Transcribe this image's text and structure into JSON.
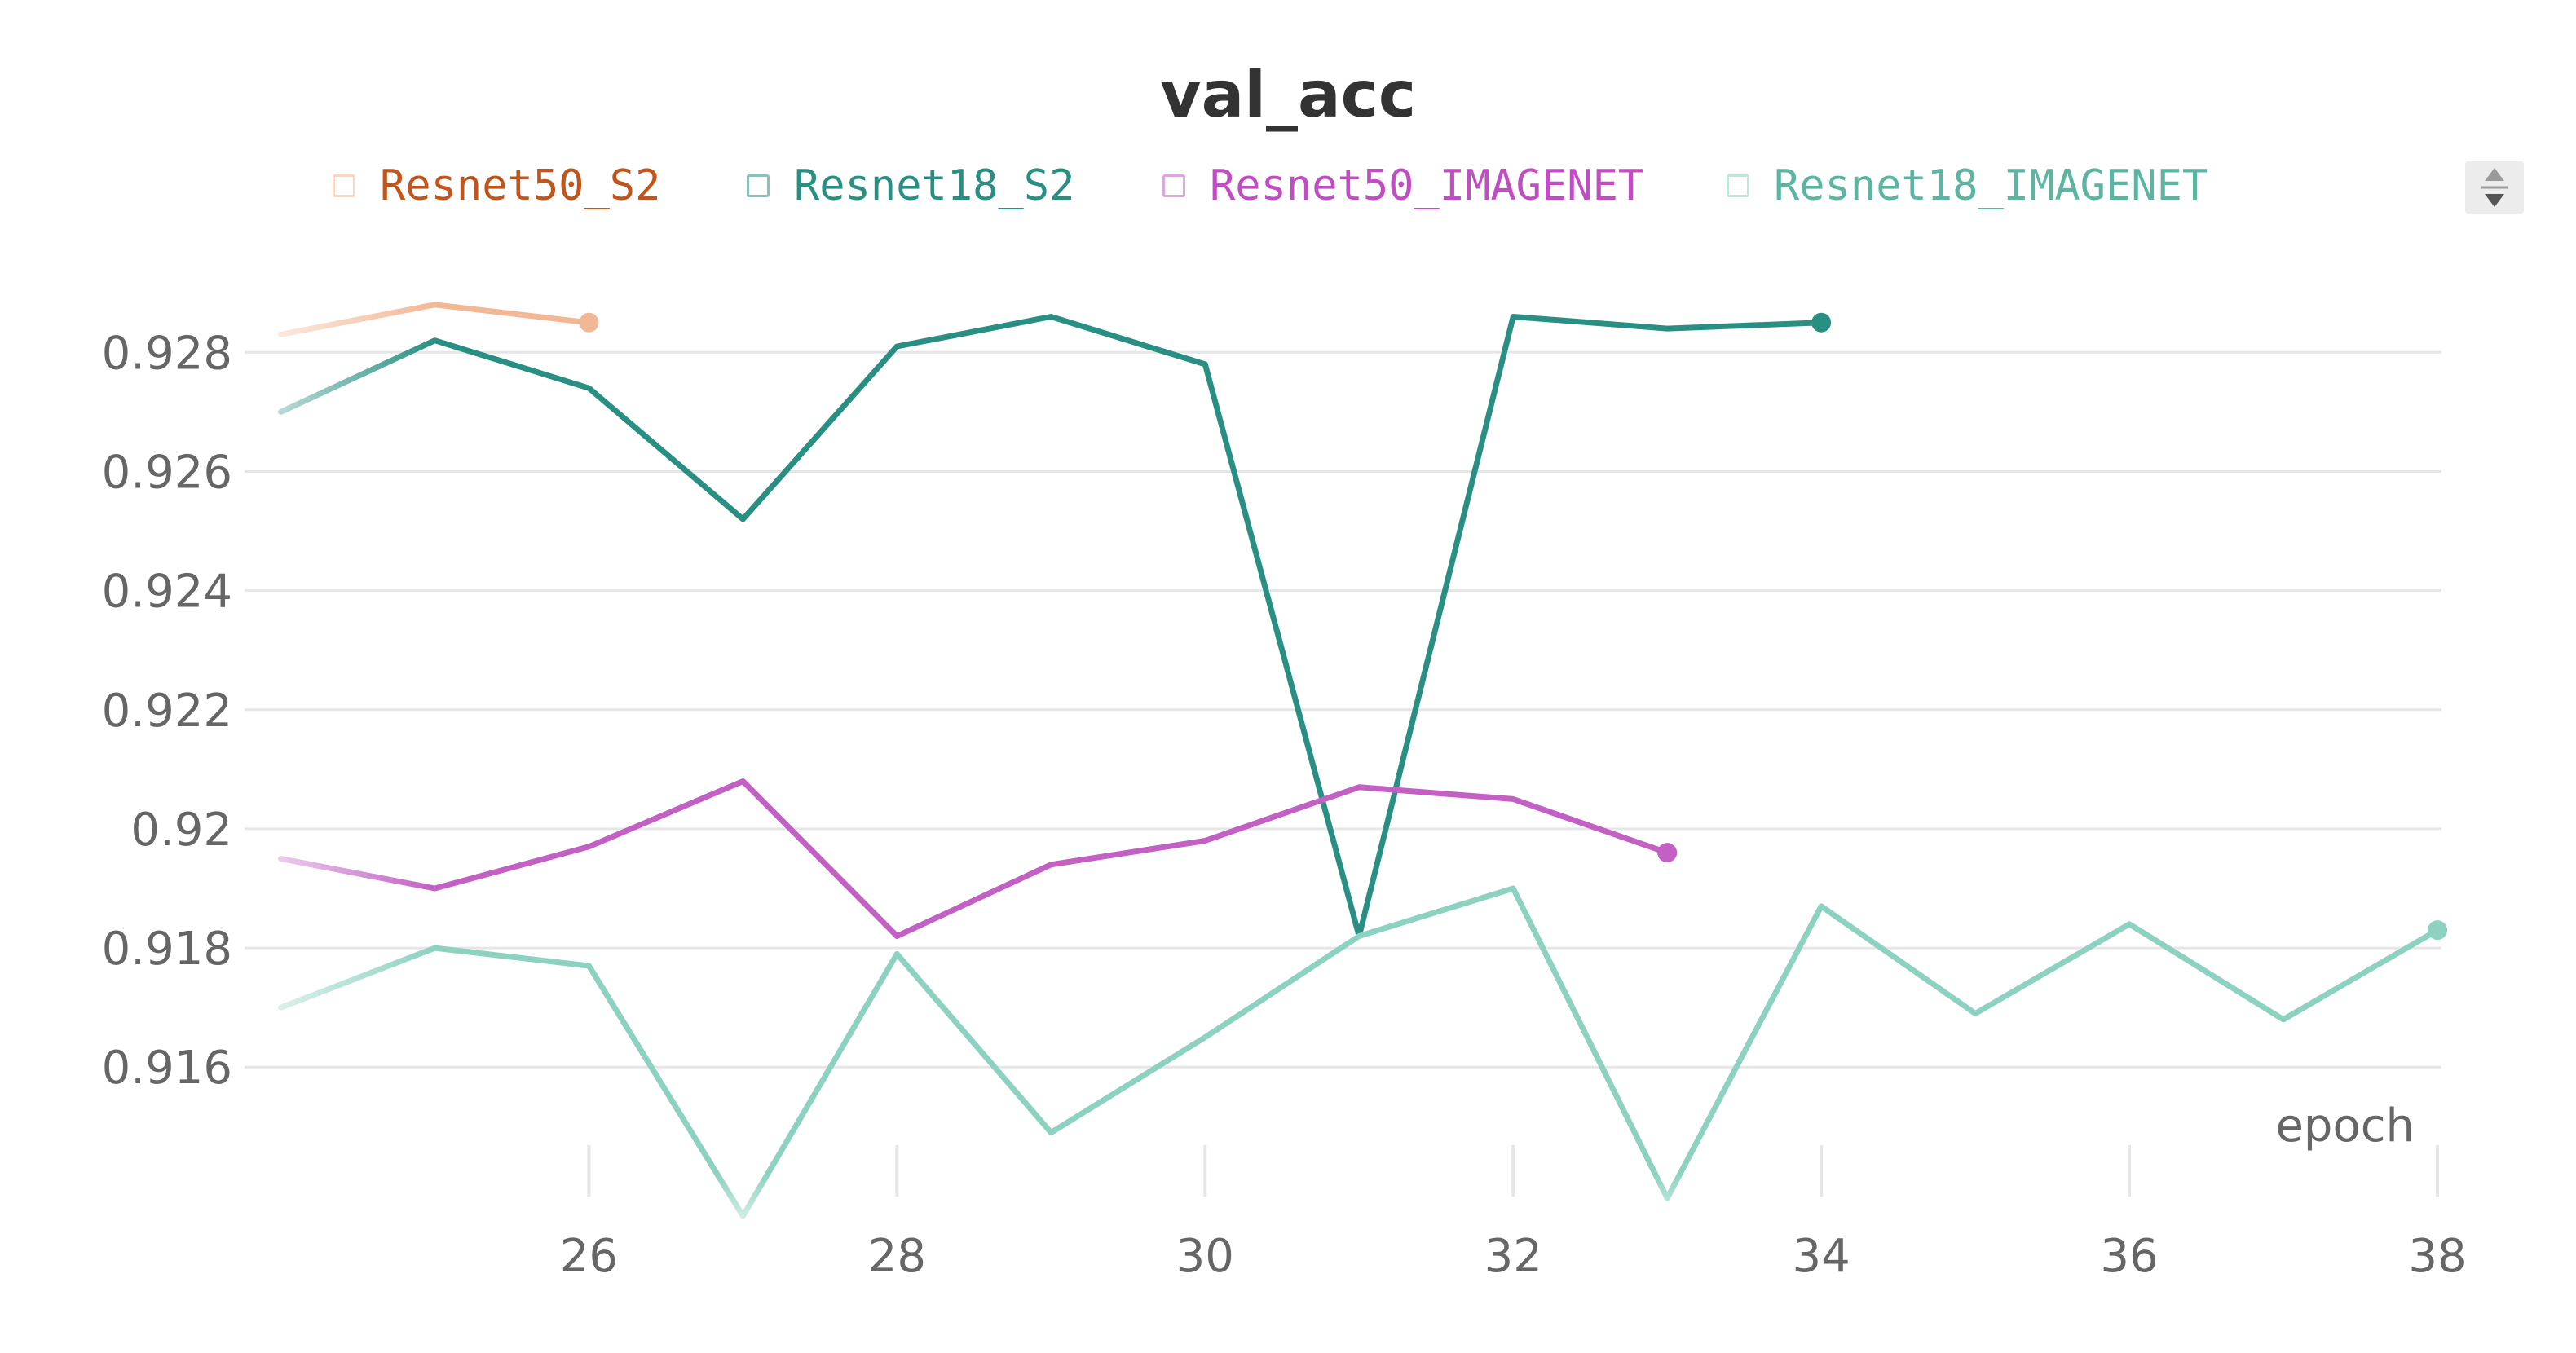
{
  "chart_data": {
    "type": "line",
    "title": "val_acc",
    "xlabel": "epoch",
    "ylabel": "",
    "xlim": [
      23.5,
      38
    ],
    "ylim": [
      0.9138,
      0.9294
    ],
    "x_ticks": [
      26,
      28,
      30,
      32,
      34,
      36,
      38
    ],
    "y_ticks": [
      0.916,
      0.918,
      0.92,
      0.922,
      0.924,
      0.926,
      0.928
    ],
    "y_tick_labels": [
      "0.916",
      "0.918",
      "0.92",
      "0.922",
      "0.924",
      "0.926",
      "0.928"
    ],
    "grid": true,
    "legend_position": "top",
    "series": [
      {
        "name": "Resnet50_S2",
        "color": "#f2b896",
        "label_color": "#c0561e",
        "x": [
          24,
          25,
          26
        ],
        "y": [
          0.9283,
          0.9288,
          0.9285
        ]
      },
      {
        "name": "Resnet18_S2",
        "color": "#2a8f83",
        "label_color": "#2a8f83",
        "x": [
          24,
          25,
          26,
          27,
          28,
          29,
          30,
          31,
          32,
          33,
          34
        ],
        "y": [
          0.927,
          0.9282,
          0.9274,
          0.9252,
          0.9281,
          0.9286,
          0.9278,
          0.9182,
          0.9286,
          0.9284,
          0.9285
        ]
      },
      {
        "name": "Resnet50_IMAGENET",
        "color": "#c260c4",
        "label_color": "#c04ec2",
        "x": [
          24,
          25,
          26,
          27,
          28,
          29,
          30,
          31,
          32,
          33
        ],
        "y": [
          0.9195,
          0.919,
          0.9197,
          0.9208,
          0.9182,
          0.9194,
          0.9198,
          0.9207,
          0.9205,
          0.9196
        ]
      },
      {
        "name": "Resnet18_IMAGENET",
        "color": "#8dd1c0",
        "label_color": "#5bb5a1",
        "x": [
          24,
          25,
          26,
          27,
          28,
          29,
          30,
          31,
          32,
          33,
          34,
          35,
          36,
          37,
          38
        ],
        "y": [
          0.917,
          0.918,
          0.9177,
          0.9135,
          0.9179,
          0.9149,
          0.9165,
          0.9182,
          0.919,
          0.9138,
          0.9187,
          0.9169,
          0.9184,
          0.9168,
          0.9183
        ]
      }
    ]
  }
}
